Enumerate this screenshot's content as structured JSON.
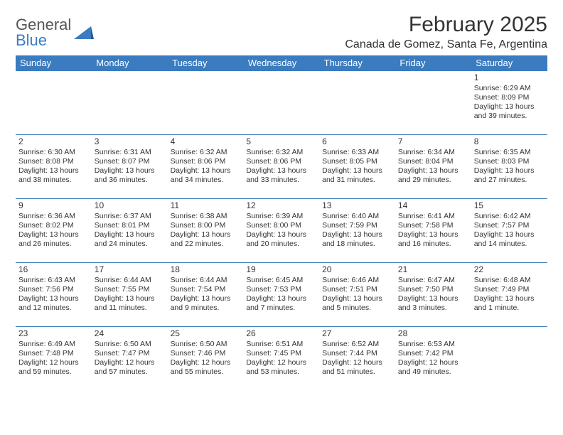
{
  "brand": {
    "name_a": "General",
    "name_b": "Blue"
  },
  "header": {
    "month_title": "February 2025",
    "location": "Canada de Gomez, Santa Fe, Argentina"
  },
  "colors": {
    "header_bg": "#3b7bbf",
    "header_text": "#ffffff",
    "border": "#3b7bbf",
    "body_text": "#333333",
    "page_bg": "#ffffff"
  },
  "typography": {
    "title_fontsize": 30,
    "location_fontsize": 16,
    "dayheader_fontsize": 13,
    "cell_fontsize": 10.5,
    "font_family": "Arial"
  },
  "calendar": {
    "type": "table",
    "columns": [
      "Sunday",
      "Monday",
      "Tuesday",
      "Wednesday",
      "Thursday",
      "Friday",
      "Saturday"
    ],
    "first_weekday_index": 6,
    "days": [
      {
        "n": 1,
        "sunrise": "6:29 AM",
        "sunset": "8:09 PM",
        "daylight": "13 hours and 39 minutes."
      },
      {
        "n": 2,
        "sunrise": "6:30 AM",
        "sunset": "8:08 PM",
        "daylight": "13 hours and 38 minutes."
      },
      {
        "n": 3,
        "sunrise": "6:31 AM",
        "sunset": "8:07 PM",
        "daylight": "13 hours and 36 minutes."
      },
      {
        "n": 4,
        "sunrise": "6:32 AM",
        "sunset": "8:06 PM",
        "daylight": "13 hours and 34 minutes."
      },
      {
        "n": 5,
        "sunrise": "6:32 AM",
        "sunset": "8:06 PM",
        "daylight": "13 hours and 33 minutes."
      },
      {
        "n": 6,
        "sunrise": "6:33 AM",
        "sunset": "8:05 PM",
        "daylight": "13 hours and 31 minutes."
      },
      {
        "n": 7,
        "sunrise": "6:34 AM",
        "sunset": "8:04 PM",
        "daylight": "13 hours and 29 minutes."
      },
      {
        "n": 8,
        "sunrise": "6:35 AM",
        "sunset": "8:03 PM",
        "daylight": "13 hours and 27 minutes."
      },
      {
        "n": 9,
        "sunrise": "6:36 AM",
        "sunset": "8:02 PM",
        "daylight": "13 hours and 26 minutes."
      },
      {
        "n": 10,
        "sunrise": "6:37 AM",
        "sunset": "8:01 PM",
        "daylight": "13 hours and 24 minutes."
      },
      {
        "n": 11,
        "sunrise": "6:38 AM",
        "sunset": "8:00 PM",
        "daylight": "13 hours and 22 minutes."
      },
      {
        "n": 12,
        "sunrise": "6:39 AM",
        "sunset": "8:00 PM",
        "daylight": "13 hours and 20 minutes."
      },
      {
        "n": 13,
        "sunrise": "6:40 AM",
        "sunset": "7:59 PM",
        "daylight": "13 hours and 18 minutes."
      },
      {
        "n": 14,
        "sunrise": "6:41 AM",
        "sunset": "7:58 PM",
        "daylight": "13 hours and 16 minutes."
      },
      {
        "n": 15,
        "sunrise": "6:42 AM",
        "sunset": "7:57 PM",
        "daylight": "13 hours and 14 minutes."
      },
      {
        "n": 16,
        "sunrise": "6:43 AM",
        "sunset": "7:56 PM",
        "daylight": "13 hours and 12 minutes."
      },
      {
        "n": 17,
        "sunrise": "6:44 AM",
        "sunset": "7:55 PM",
        "daylight": "13 hours and 11 minutes."
      },
      {
        "n": 18,
        "sunrise": "6:44 AM",
        "sunset": "7:54 PM",
        "daylight": "13 hours and 9 minutes."
      },
      {
        "n": 19,
        "sunrise": "6:45 AM",
        "sunset": "7:53 PM",
        "daylight": "13 hours and 7 minutes."
      },
      {
        "n": 20,
        "sunrise": "6:46 AM",
        "sunset": "7:51 PM",
        "daylight": "13 hours and 5 minutes."
      },
      {
        "n": 21,
        "sunrise": "6:47 AM",
        "sunset": "7:50 PM",
        "daylight": "13 hours and 3 minutes."
      },
      {
        "n": 22,
        "sunrise": "6:48 AM",
        "sunset": "7:49 PM",
        "daylight": "13 hours and 1 minute."
      },
      {
        "n": 23,
        "sunrise": "6:49 AM",
        "sunset": "7:48 PM",
        "daylight": "12 hours and 59 minutes."
      },
      {
        "n": 24,
        "sunrise": "6:50 AM",
        "sunset": "7:47 PM",
        "daylight": "12 hours and 57 minutes."
      },
      {
        "n": 25,
        "sunrise": "6:50 AM",
        "sunset": "7:46 PM",
        "daylight": "12 hours and 55 minutes."
      },
      {
        "n": 26,
        "sunrise": "6:51 AM",
        "sunset": "7:45 PM",
        "daylight": "12 hours and 53 minutes."
      },
      {
        "n": 27,
        "sunrise": "6:52 AM",
        "sunset": "7:44 PM",
        "daylight": "12 hours and 51 minutes."
      },
      {
        "n": 28,
        "sunrise": "6:53 AM",
        "sunset": "7:42 PM",
        "daylight": "12 hours and 49 minutes."
      }
    ],
    "labels": {
      "sunrise": "Sunrise:",
      "sunset": "Sunset:",
      "daylight": "Daylight:"
    }
  }
}
